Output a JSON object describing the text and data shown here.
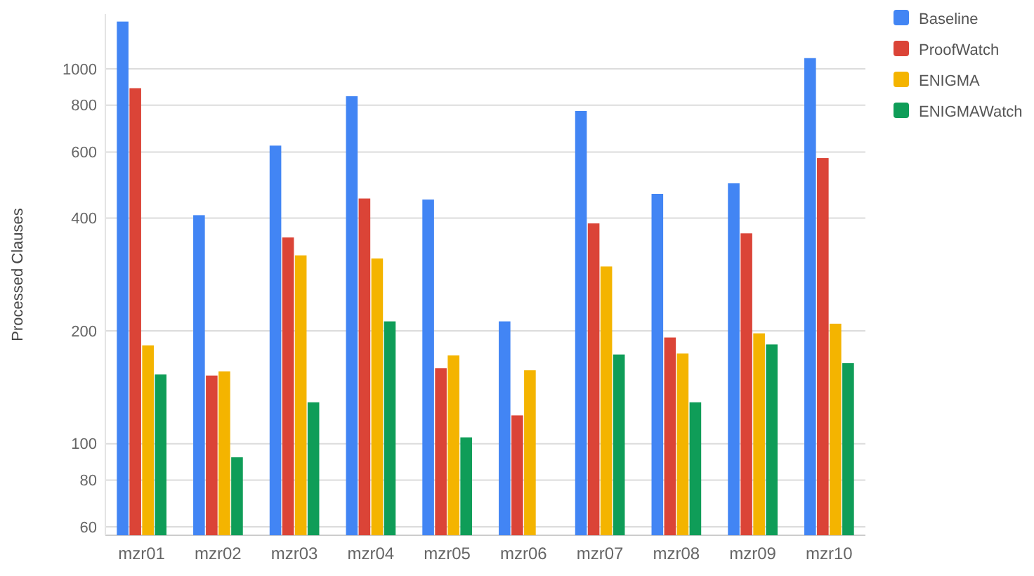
{
  "chart_data": {
    "type": "bar",
    "ylabel": "Processed Clauses",
    "log": "y",
    "ylim": [
      57,
      1400
    ],
    "yticks": [
      60,
      80,
      100,
      200,
      400,
      600,
      800,
      1000
    ],
    "grid": "y",
    "legend": "top right",
    "categories": [
      "mzr01",
      "mzr02",
      "mzr03",
      "mzr04",
      "mzr05",
      "mzr06",
      "mzr07",
      "mzr08",
      "mzr09",
      "mzr10"
    ],
    "series": [
      {
        "name": "Baseline",
        "color": "#4285f4",
        "values": [
          1337,
          407,
          624,
          845,
          448,
          212,
          772,
          464,
          495,
          1068
        ]
      },
      {
        "name": "ProofWatch",
        "color": "#db4437",
        "values": [
          888,
          152,
          355,
          451,
          159,
          119,
          387,
          192,
          364,
          578
        ]
      },
      {
        "name": "ENIGMA",
        "color": "#f4b400",
        "values": [
          183,
          156,
          318,
          312,
          172,
          157,
          297,
          174,
          197,
          209
        ]
      },
      {
        "name": "ENIGMAWatch",
        "color": "#0f9d58",
        "values": [
          153,
          92,
          129,
          212,
          104,
          null,
          173,
          129,
          184,
          164
        ]
      }
    ]
  }
}
